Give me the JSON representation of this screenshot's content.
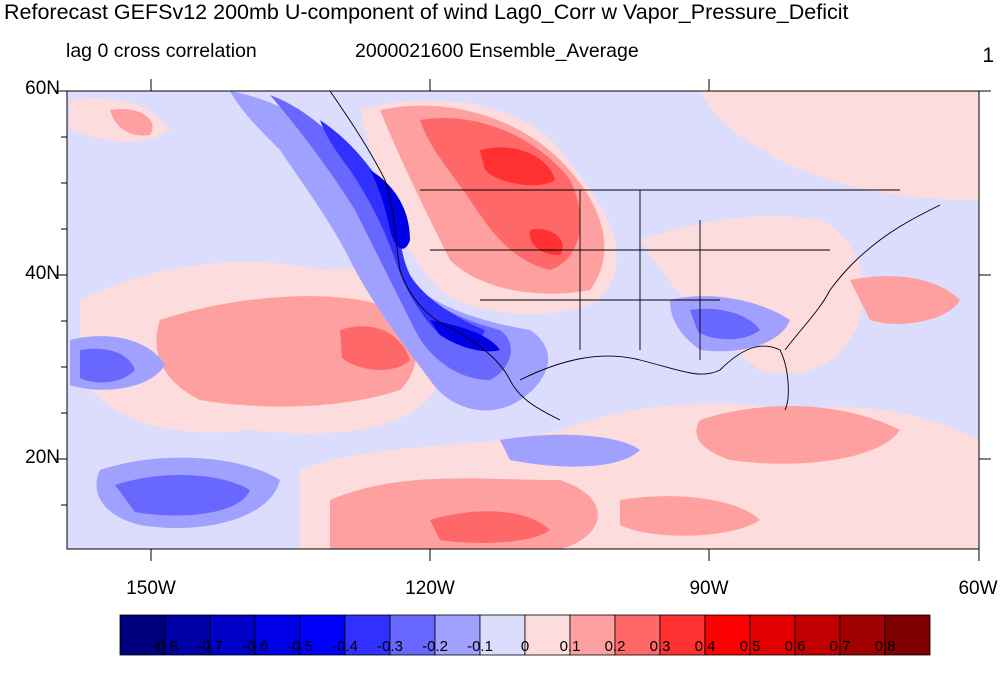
{
  "title": "Reforecast GEFSv12 200mb U-component of wind Lag0_Corr w Vapor_Pressure_Deficit",
  "left_subtitle": "lag 0 cross correlation",
  "center_subtitle": "2000021600 Ensemble_Average",
  "panel_number": "1",
  "map": {
    "lat_labels": [
      "60N",
      "40N",
      "20N"
    ],
    "lon_labels": [
      "150W",
      "120W",
      "90W",
      "60W"
    ],
    "extent": {
      "lon": [
        -159,
        -61
      ],
      "lat": [
        10,
        60
      ]
    }
  },
  "colorbar": {
    "labels": [
      "-0.8",
      "-0.7",
      "-0.6",
      "-0.5",
      "-0.4",
      "-0.3",
      "-0.2",
      "-0.1",
      "0",
      "0.1",
      "0.2",
      "0.3",
      "0.4",
      "0.5",
      "0.6",
      "0.7",
      "0.8"
    ],
    "colors": [
      "#00007f",
      "#0000a8",
      "#0000c8",
      "#0000e6",
      "#0000ff",
      "#3030ff",
      "#6868ff",
      "#a0a0ff",
      "#dcdcfc",
      "#fcdcdc",
      "#ffa0a0",
      "#ff6868",
      "#ff3030",
      "#ff0000",
      "#e00000",
      "#c00000",
      "#a00000",
      "#7f0000"
    ]
  },
  "colors": {
    "land_border": "#000000",
    "neutral": "#dcdcfc"
  }
}
